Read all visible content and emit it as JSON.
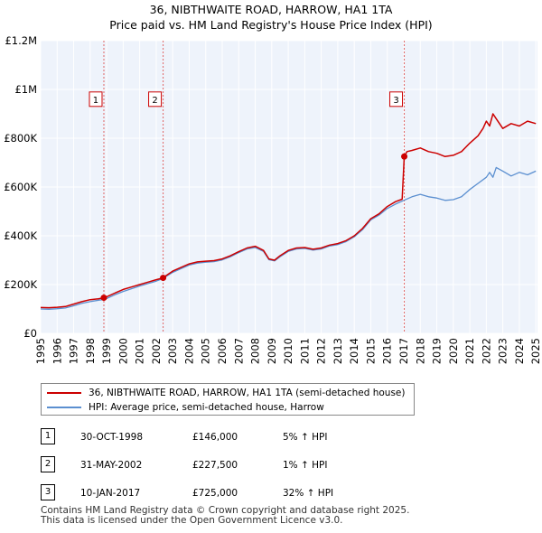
{
  "chart_data": {
    "type": "line",
    "title": "36, NIBTHWAITE ROAD, HARROW, HA1 1TA",
    "subtitle": "Price paid vs. HM Land Registry's House Price Index (HPI)",
    "xlim": [
      1995,
      2025.1
    ],
    "ylim": [
      0,
      1200000
    ],
    "y_ticks": [
      0,
      200000,
      400000,
      600000,
      800000,
      1000000,
      1200000
    ],
    "y_tick_labels": [
      "£0",
      "£200K",
      "£400K",
      "£600K",
      "£800K",
      "£1M",
      "£1.2M"
    ],
    "x_ticks": [
      1995,
      1996,
      1997,
      1998,
      1999,
      2000,
      2001,
      2002,
      2003,
      2004,
      2005,
      2006,
      2007,
      2008,
      2009,
      2010,
      2011,
      2012,
      2013,
      2014,
      2015,
      2016,
      2017,
      2018,
      2019,
      2020,
      2021,
      2022,
      2023,
      2024,
      2025
    ],
    "x_tick_labels": [
      "1995",
      "1996",
      "1997",
      "1998",
      "1999",
      "2000",
      "2001",
      "2002",
      "2003",
      "2004",
      "2005",
      "2006",
      "2007",
      "2008",
      "2009",
      "2010",
      "2011",
      "2012",
      "2013",
      "2014",
      "2015",
      "2016",
      "2017",
      "2018",
      "2019",
      "2020",
      "2021",
      "2022",
      "2023",
      "2024",
      "2025"
    ],
    "series": [
      {
        "name": "36, NIBTHWAITE ROAD, HARROW, HA1 1TA (semi-detached house)",
        "color": "#cc0000",
        "x": [
          1995.0,
          1995.5,
          1996.0,
          1996.5,
          1997.0,
          1997.5,
          1998.0,
          1998.5,
          1998.83,
          1999.0,
          1999.5,
          2000.0,
          2000.5,
          2001.0,
          2001.5,
          2002.0,
          2002.42,
          2002.5,
          2003.0,
          2003.5,
          2004.0,
          2004.5,
          2005.0,
          2005.5,
          2006.0,
          2006.5,
          2007.0,
          2007.5,
          2008.0,
          2008.5,
          2008.83,
          2009.17,
          2009.5,
          2010.0,
          2010.5,
          2011.0,
          2011.5,
          2012.0,
          2012.5,
          2013.0,
          2013.5,
          2014.0,
          2014.5,
          2015.0,
          2015.5,
          2016.0,
          2016.5,
          2016.9,
          2017.03,
          2017.2,
          2017.5,
          2018.0,
          2018.5,
          2019.0,
          2019.5,
          2020.0,
          2020.5,
          2021.0,
          2021.5,
          2021.8,
          2022.0,
          2022.2,
          2022.4,
          2022.6,
          2023.0,
          2023.5,
          2024.0,
          2024.5,
          2025.0
        ],
        "values": [
          106000,
          105000,
          107000,
          110000,
          120000,
          130000,
          138000,
          142000,
          146000,
          150000,
          165000,
          180000,
          190000,
          200000,
          210000,
          220000,
          227500,
          232000,
          255000,
          270000,
          285000,
          293000,
          296000,
          298000,
          305000,
          318000,
          335000,
          350000,
          357000,
          340000,
          305000,
          300000,
          318000,
          340000,
          350000,
          352000,
          345000,
          350000,
          362000,
          368000,
          380000,
          400000,
          430000,
          470000,
          490000,
          520000,
          540000,
          550000,
          725000,
          745000,
          750000,
          760000,
          745000,
          738000,
          725000,
          730000,
          745000,
          780000,
          810000,
          840000,
          870000,
          850000,
          900000,
          880000,
          840000,
          860000,
          850000,
          870000,
          860000
        ]
      },
      {
        "name": "HPI: Average price, semi-detached house, Harrow",
        "color": "#5b8fd0",
        "x": [
          1995.0,
          1995.5,
          1996.0,
          1996.5,
          1997.0,
          1997.5,
          1998.0,
          1998.5,
          1998.83,
          1999.0,
          1999.5,
          2000.0,
          2000.5,
          2001.0,
          2001.5,
          2002.0,
          2002.42,
          2002.5,
          2003.0,
          2003.5,
          2004.0,
          2004.5,
          2005.0,
          2005.5,
          2006.0,
          2006.5,
          2007.0,
          2007.5,
          2008.0,
          2008.5,
          2008.83,
          2009.17,
          2009.5,
          2010.0,
          2010.5,
          2011.0,
          2011.5,
          2012.0,
          2012.5,
          2013.0,
          2013.5,
          2014.0,
          2014.5,
          2015.0,
          2015.5,
          2016.0,
          2016.5,
          2017.0,
          2017.5,
          2018.0,
          2018.5,
          2019.0,
          2019.5,
          2020.0,
          2020.5,
          2021.0,
          2021.5,
          2022.0,
          2022.2,
          2022.4,
          2022.6,
          2023.0,
          2023.5,
          2024.0,
          2024.5,
          2025.0
        ],
        "values": [
          100000,
          99000,
          101000,
          104000,
          113000,
          123000,
          130000,
          136000,
          139000,
          143000,
          158000,
          172000,
          183000,
          194000,
          204000,
          214000,
          225000,
          229000,
          250000,
          265000,
          280000,
          288000,
          292000,
          294000,
          301000,
          314000,
          331000,
          346000,
          352000,
          336000,
          302000,
          297000,
          314000,
          336000,
          346000,
          348000,
          341000,
          346000,
          358000,
          364000,
          376000,
          396000,
          425000,
          465000,
          485000,
          512000,
          530000,
          545000,
          560000,
          570000,
          560000,
          555000,
          545000,
          548000,
          560000,
          590000,
          615000,
          640000,
          660000,
          640000,
          680000,
          665000,
          645000,
          660000,
          650000,
          665000
        ]
      }
    ],
    "sales": [
      {
        "label": "1",
        "x": 1998.83,
        "price": 146000
      },
      {
        "label": "2",
        "x": 2002.42,
        "price": 227500
      },
      {
        "label": "3",
        "x": 2017.03,
        "price": 725000
      }
    ],
    "marker_label_y_value": 960000
  },
  "legend": {
    "property_label": "36, NIBTHWAITE ROAD, HARROW, HA1 1TA (semi-detached house)",
    "hpi_label": "HPI: Average price, semi-detached house, Harrow"
  },
  "sales_table": [
    {
      "num": "1",
      "date": "30-OCT-1998",
      "price": "£146,000",
      "hpi": "5% ↑ HPI"
    },
    {
      "num": "2",
      "date": "31-MAY-2002",
      "price": "£227,500",
      "hpi": "1% ↑ HPI"
    },
    {
      "num": "3",
      "date": "10-JAN-2017",
      "price": "£725,000",
      "hpi": "32% ↑ HPI"
    }
  ],
  "footer": {
    "line1": "Contains HM Land Registry data © Crown copyright and database right 2025.",
    "line2": "This data is licensed under the Open Government Licence v3.0."
  }
}
